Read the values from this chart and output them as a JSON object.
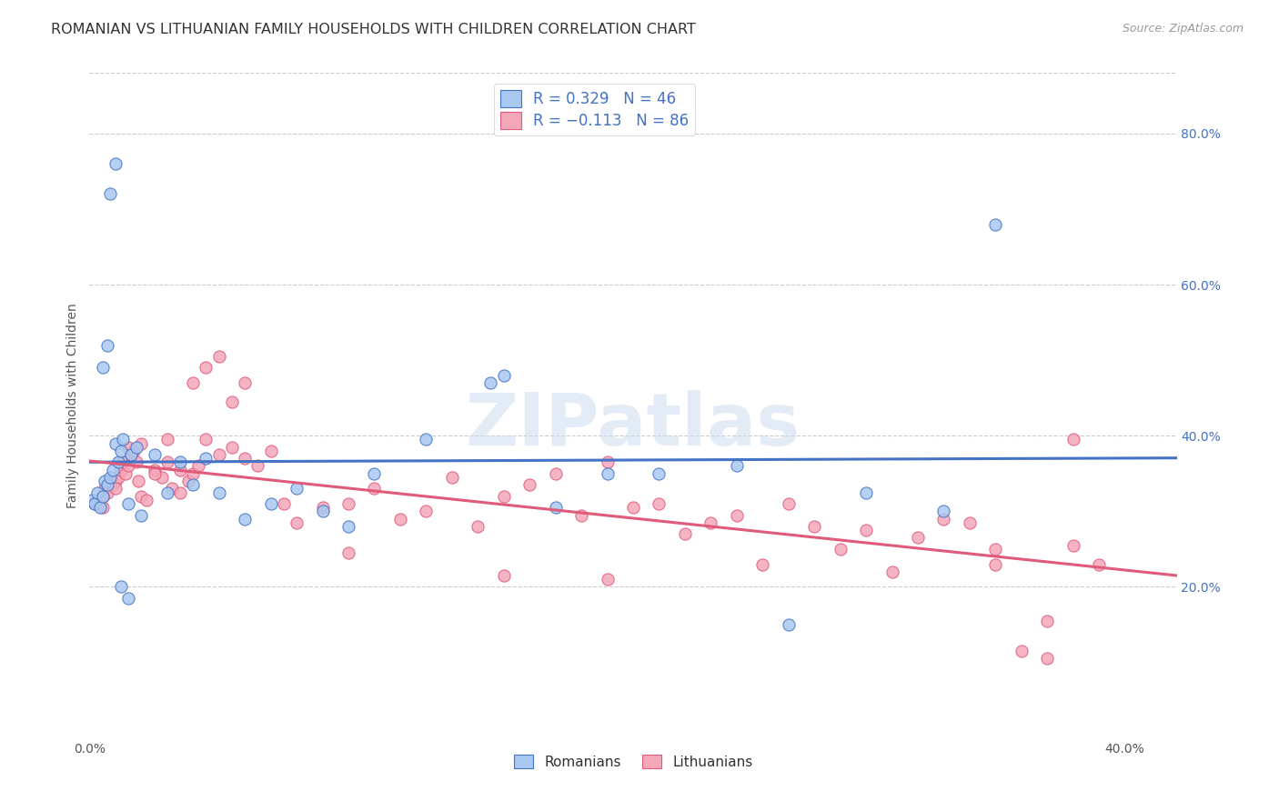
{
  "title": "ROMANIAN VS LITHUANIAN FAMILY HOUSEHOLDS WITH CHILDREN CORRELATION CHART",
  "source": "Source: ZipAtlas.com",
  "ylabel": "Family Households with Children",
  "watermark": "ZIPatlas",
  "legend_label_r": "Romanians",
  "legend_label_l": "Lithuanians",
  "xlim": [
    0.0,
    0.42
  ],
  "ylim": [
    0.0,
    0.88
  ],
  "yticks_right": [
    0.2,
    0.4,
    0.6,
    0.8
  ],
  "ytick_right_labels": [
    "20.0%",
    "40.0%",
    "60.0%",
    "80.0%"
  ],
  "color_romanian": "#a8c8f0",
  "color_lithuanian": "#f4a7b9",
  "color_trendline_romanian": "#4472c4",
  "color_trendline_lithuanian": "#e05a7a",
  "background_color": "#ffffff",
  "grid_color": "#cccccc",
  "title_fontsize": 11.5,
  "axis_label_fontsize": 10,
  "tick_fontsize": 10,
  "romanian_x": [
    0.001,
    0.002,
    0.003,
    0.004,
    0.005,
    0.006,
    0.007,
    0.008,
    0.009,
    0.01,
    0.011,
    0.012,
    0.013,
    0.015,
    0.016,
    0.018,
    0.02,
    0.025,
    0.03,
    0.035,
    0.04,
    0.045,
    0.05,
    0.06,
    0.07,
    0.08,
    0.09,
    0.1,
    0.11,
    0.13,
    0.155,
    0.16,
    0.18,
    0.2,
    0.22,
    0.25,
    0.27,
    0.3,
    0.33,
    0.35,
    0.005,
    0.007,
    0.012,
    0.015,
    0.01,
    0.008
  ],
  "romanian_y": [
    0.315,
    0.31,
    0.325,
    0.305,
    0.32,
    0.34,
    0.335,
    0.345,
    0.355,
    0.39,
    0.365,
    0.38,
    0.395,
    0.31,
    0.375,
    0.385,
    0.295,
    0.375,
    0.325,
    0.365,
    0.335,
    0.37,
    0.325,
    0.29,
    0.31,
    0.33,
    0.3,
    0.28,
    0.35,
    0.395,
    0.47,
    0.48,
    0.305,
    0.35,
    0.35,
    0.36,
    0.15,
    0.325,
    0.3,
    0.68,
    0.49,
    0.52,
    0.2,
    0.185,
    0.76,
    0.72
  ],
  "lithuanian_x": [
    0.002,
    0.003,
    0.004,
    0.005,
    0.006,
    0.007,
    0.008,
    0.009,
    0.01,
    0.011,
    0.012,
    0.013,
    0.014,
    0.015,
    0.016,
    0.017,
    0.018,
    0.019,
    0.02,
    0.022,
    0.025,
    0.028,
    0.03,
    0.032,
    0.035,
    0.038,
    0.04,
    0.042,
    0.045,
    0.05,
    0.055,
    0.06,
    0.065,
    0.07,
    0.075,
    0.08,
    0.09,
    0.1,
    0.11,
    0.12,
    0.13,
    0.14,
    0.15,
    0.16,
    0.17,
    0.18,
    0.19,
    0.2,
    0.21,
    0.22,
    0.23,
    0.24,
    0.25,
    0.26,
    0.27,
    0.28,
    0.29,
    0.3,
    0.31,
    0.32,
    0.33,
    0.34,
    0.35,
    0.36,
    0.37,
    0.38,
    0.39,
    0.005,
    0.01,
    0.015,
    0.02,
    0.025,
    0.03,
    0.035,
    0.04,
    0.045,
    0.05,
    0.055,
    0.06,
    0.1,
    0.16,
    0.2,
    0.35,
    0.37,
    0.38
  ],
  "lithuanian_y": [
    0.31,
    0.315,
    0.31,
    0.305,
    0.33,
    0.325,
    0.34,
    0.335,
    0.34,
    0.345,
    0.355,
    0.365,
    0.35,
    0.36,
    0.375,
    0.38,
    0.365,
    0.34,
    0.32,
    0.315,
    0.355,
    0.345,
    0.365,
    0.33,
    0.325,
    0.34,
    0.35,
    0.36,
    0.395,
    0.375,
    0.385,
    0.37,
    0.36,
    0.38,
    0.31,
    0.285,
    0.305,
    0.31,
    0.33,
    0.29,
    0.3,
    0.345,
    0.28,
    0.32,
    0.335,
    0.35,
    0.295,
    0.365,
    0.305,
    0.31,
    0.27,
    0.285,
    0.295,
    0.23,
    0.31,
    0.28,
    0.25,
    0.275,
    0.22,
    0.265,
    0.29,
    0.285,
    0.25,
    0.115,
    0.155,
    0.255,
    0.23,
    0.32,
    0.33,
    0.385,
    0.39,
    0.35,
    0.395,
    0.355,
    0.47,
    0.49,
    0.505,
    0.445,
    0.47,
    0.245,
    0.215,
    0.21,
    0.23,
    0.105,
    0.395
  ]
}
